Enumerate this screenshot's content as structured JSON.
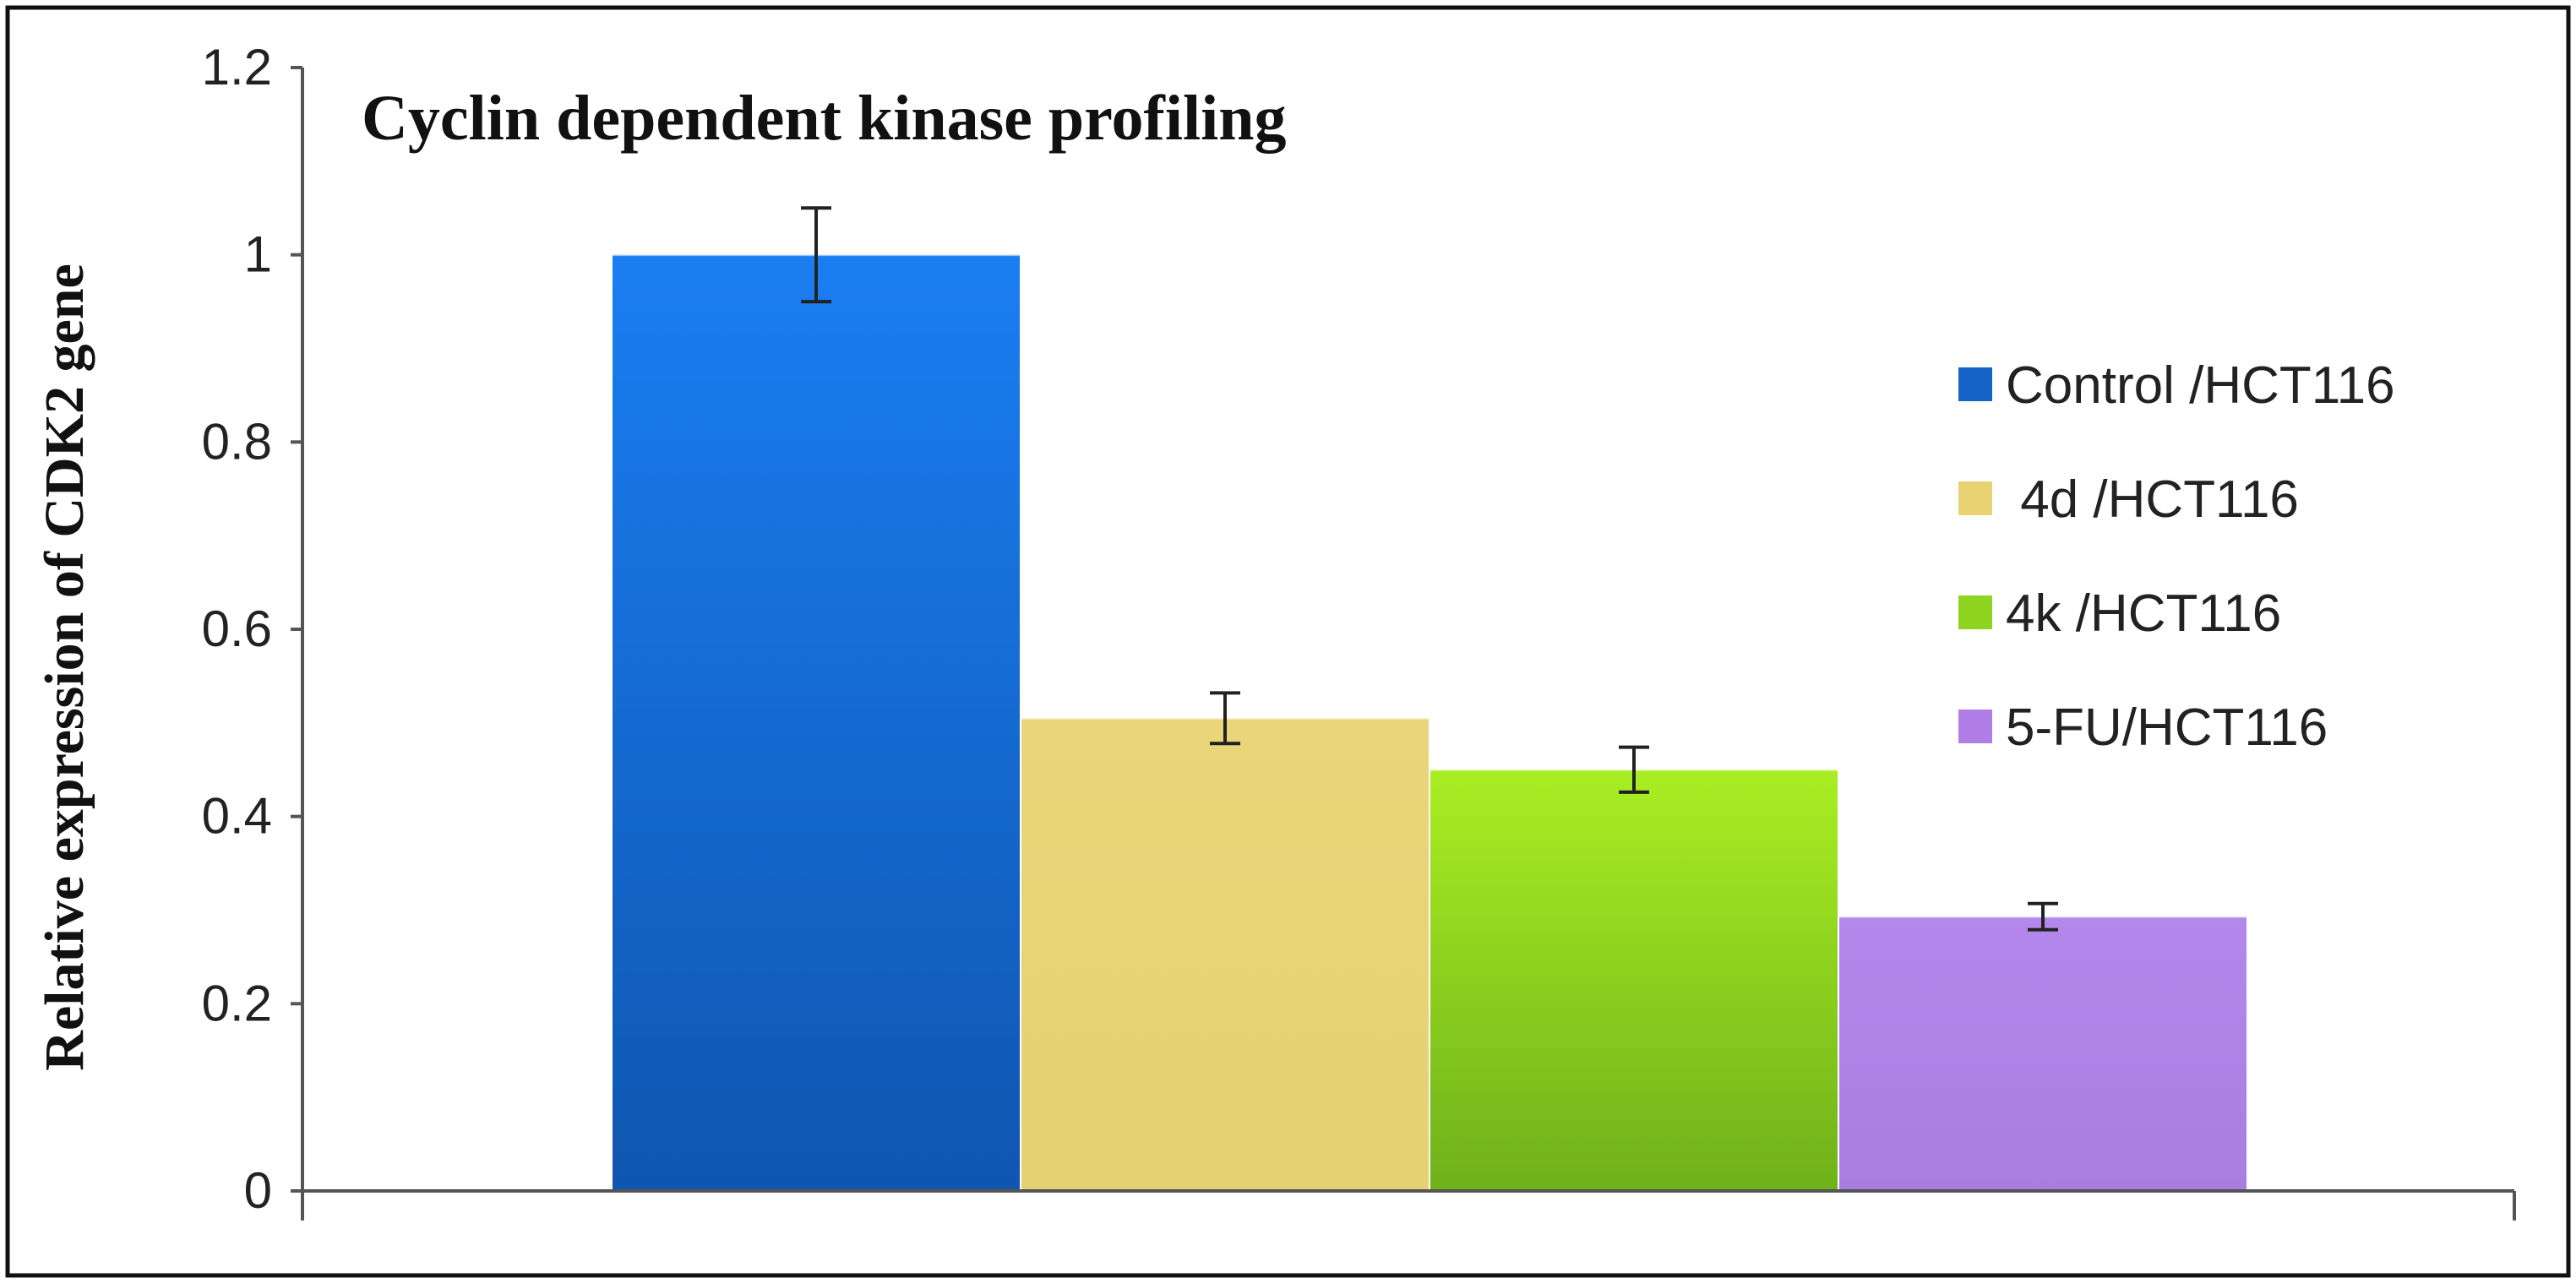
{
  "chart_data": {
    "type": "bar",
    "title": "Cyclin dependent kinase profiling",
    "ylabel": "Relative expression of CDK2 gene",
    "xlabel": "",
    "ylim": [
      0,
      1.2
    ],
    "yticks": [
      "0",
      "0.2",
      "0.4",
      "0.6",
      "0.8",
      "1",
      "1.2"
    ],
    "ytick_values": [
      0,
      0.2,
      0.4,
      0.6,
      0.8,
      1.0,
      1.2
    ],
    "grid": false,
    "legend_position": "right",
    "series": [
      {
        "name": "Control /HCT116",
        "value": 1.0,
        "error": 0.05,
        "color_top": "#1a7ef2",
        "color_bottom": "#0f56b0",
        "legend_color": "#1565c8"
      },
      {
        "name": " 4d /HCT116",
        "value": 0.505,
        "error": 0.027,
        "color_top": "#ead57a",
        "color_bottom": "#e5d172",
        "legend_color": "#e8d272"
      },
      {
        "name": "4k /HCT116",
        "value": 0.45,
        "error": 0.024,
        "color_top": "#a9ee23",
        "color_bottom": "#6fb11a",
        "legend_color": "#8fd41e"
      },
      {
        "name": "5-FU/HCT116",
        "value": 0.293,
        "error": 0.014,
        "color_top": "#b487ec",
        "color_bottom": "#a97de0",
        "legend_color": "#b07ee6"
      }
    ]
  }
}
